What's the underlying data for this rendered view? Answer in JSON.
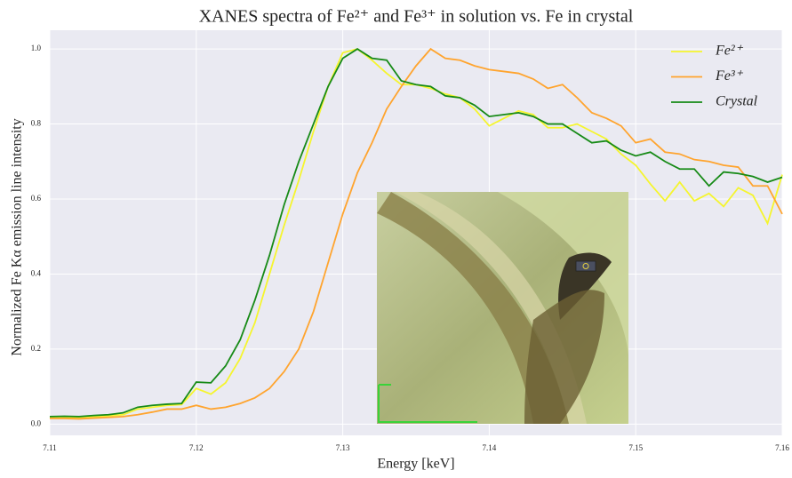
{
  "chart_data": {
    "type": "line",
    "title": "XANES spectra of Fe²⁺ and Fe³⁺ in solution vs. Fe in crystal",
    "xlabel": "Energy [keV]",
    "ylabel": "Normalized Fe Kα emission line intensity",
    "x": [
      7.11,
      7.111,
      7.112,
      7.113,
      7.114,
      7.115,
      7.116,
      7.117,
      7.118,
      7.119,
      7.12,
      7.121,
      7.122,
      7.123,
      7.124,
      7.125,
      7.126,
      7.127,
      7.128,
      7.129,
      7.13,
      7.131,
      7.132,
      7.133,
      7.134,
      7.135,
      7.136,
      7.137,
      7.138,
      7.139,
      7.14,
      7.141,
      7.142,
      7.143,
      7.144,
      7.145,
      7.146,
      7.147,
      7.148,
      7.149,
      7.15,
      7.151,
      7.152,
      7.153,
      7.154,
      7.155,
      7.156,
      7.157,
      7.158,
      7.159,
      7.16
    ],
    "series": [
      {
        "name": "Fe²⁺",
        "color": "#f5f52e",
        "values": [
          0.018,
          0.018,
          0.017,
          0.02,
          0.022,
          0.025,
          0.04,
          0.045,
          0.05,
          0.052,
          0.095,
          0.08,
          0.11,
          0.175,
          0.27,
          0.4,
          0.53,
          0.65,
          0.78,
          0.9,
          0.99,
          1.0,
          0.97,
          0.935,
          0.905,
          0.905,
          0.895,
          0.88,
          0.87,
          0.84,
          0.795,
          0.815,
          0.835,
          0.825,
          0.79,
          0.79,
          0.8,
          0.78,
          0.76,
          0.72,
          0.69,
          0.64,
          0.595,
          0.645,
          0.595,
          0.615,
          0.58,
          0.63,
          0.61,
          0.535,
          0.665
        ]
      },
      {
        "name": "Fe³⁺",
        "color": "#ffa42e",
        "values": [
          0.015,
          0.015,
          0.014,
          0.016,
          0.018,
          0.02,
          0.025,
          0.032,
          0.04,
          0.04,
          0.05,
          0.04,
          0.045,
          0.055,
          0.07,
          0.095,
          0.14,
          0.2,
          0.3,
          0.43,
          0.56,
          0.67,
          0.75,
          0.84,
          0.9,
          0.955,
          1.0,
          0.975,
          0.97,
          0.955,
          0.945,
          0.94,
          0.935,
          0.92,
          0.895,
          0.905,
          0.87,
          0.83,
          0.815,
          0.795,
          0.75,
          0.76,
          0.725,
          0.72,
          0.705,
          0.7,
          0.69,
          0.685,
          0.635,
          0.635,
          0.56
        ]
      },
      {
        "name": "Crystal",
        "color": "#168a16",
        "values": [
          0.02,
          0.021,
          0.02,
          0.023,
          0.025,
          0.03,
          0.045,
          0.05,
          0.053,
          0.055,
          0.112,
          0.11,
          0.155,
          0.225,
          0.33,
          0.45,
          0.585,
          0.7,
          0.8,
          0.9,
          0.975,
          1.0,
          0.975,
          0.97,
          0.915,
          0.905,
          0.9,
          0.875,
          0.87,
          0.85,
          0.82,
          0.825,
          0.83,
          0.82,
          0.8,
          0.8,
          0.775,
          0.75,
          0.755,
          0.73,
          0.715,
          0.725,
          0.7,
          0.68,
          0.68,
          0.635,
          0.672,
          0.668,
          0.66,
          0.645,
          0.658
        ]
      }
    ],
    "xlim": [
      7.11,
      7.16
    ],
    "ylim": [
      -0.03,
      1.05
    ],
    "xticks": [
      7.11,
      7.12,
      7.13,
      7.14,
      7.15,
      7.16
    ],
    "yticks": [
      {
        "value": 0,
        "label": "0.0"
      },
      {
        "value": 0.2,
        "label": "0.2"
      },
      {
        "value": 0.4,
        "label": "0.4"
      },
      {
        "value": 0.6,
        "label": "0.6"
      },
      {
        "value": 0.8,
        "label": "0.8"
      },
      {
        "value": 1,
        "label": "1.0"
      }
    ],
    "grid": true,
    "legend": "upper right"
  }
}
